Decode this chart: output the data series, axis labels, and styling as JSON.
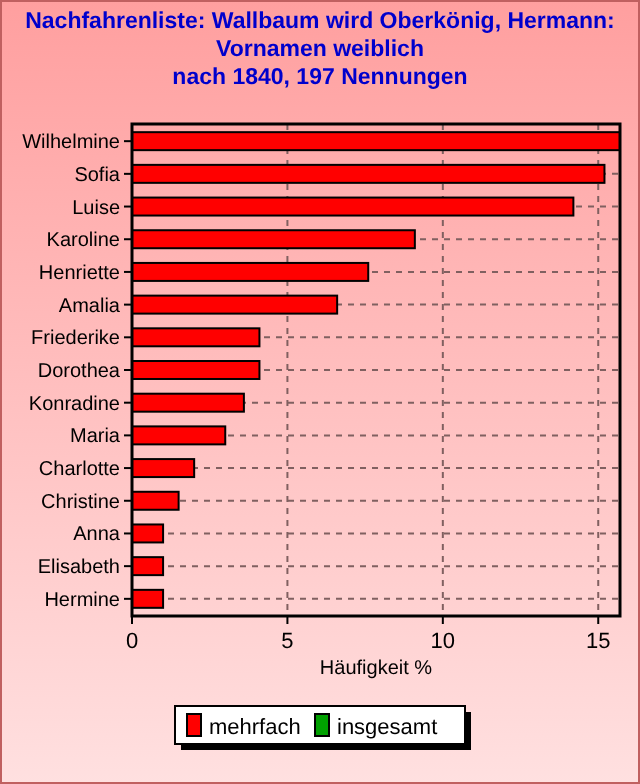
{
  "chart_data": {
    "type": "bar",
    "orientation": "horizontal",
    "title": "Nachfahrenliste: Wallbaum wird Oberkönig, Hermann:\nVornamen weiblich\nnach 1840, 197 Nennungen",
    "xlabel": "Häufigkeit %",
    "categories": [
      "Wilhelmine",
      "Sofia",
      "Luise",
      "Karoline",
      "Henriette",
      "Amalia",
      "Friederike",
      "Dorothea",
      "Konradine",
      "Maria",
      "Charlotte",
      "Christine",
      "Anna",
      "Elisabeth",
      "Hermine"
    ],
    "series": [
      {
        "name": "mehrfach",
        "color": "#ff0000",
        "values": [
          15.7,
          15.2,
          14.2,
          9.1,
          7.6,
          6.6,
          4.1,
          4.1,
          3.6,
          3.0,
          2.0,
          1.5,
          1.0,
          1.0,
          1.0
        ]
      },
      {
        "name": "insgesamt",
        "color": "#00a000",
        "values": [
          null,
          null,
          null,
          null,
          null,
          null,
          null,
          null,
          null,
          null,
          null,
          null,
          null,
          null,
          null
        ]
      }
    ],
    "xlim": [
      0,
      15.7
    ],
    "xticks": [
      0,
      5,
      10,
      15
    ],
    "grid": true,
    "legend": "bottom"
  }
}
